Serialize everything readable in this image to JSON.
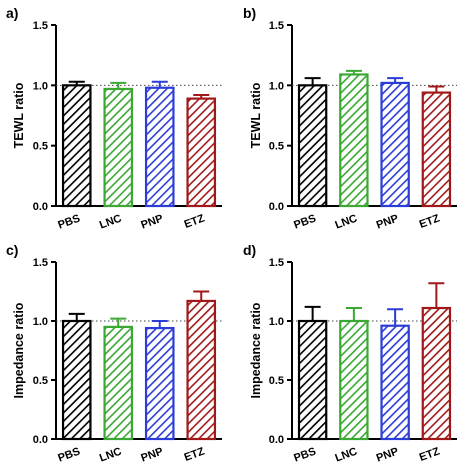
{
  "chart_data": [
    {
      "type": "bar",
      "panel_label": "a)",
      "categories": [
        "PBS",
        "LNC",
        "PNP",
        "ETZ"
      ],
      "values": [
        1.0,
        0.97,
        0.98,
        0.89
      ],
      "errors": [
        0.03,
        0.05,
        0.05,
        0.03
      ],
      "bar_colors": [
        "#000000",
        "#3aa832",
        "#2b3dd6",
        "#a01818"
      ],
      "ylabel": "TEWL ratio",
      "xlabel": "",
      "ylim": [
        0.0,
        1.5
      ],
      "yticks": [
        "0.0",
        "0.5",
        "1.0",
        "1.5"
      ],
      "reference_line": 1.0,
      "bar_fill": "diagonal-hatch",
      "grid": false,
      "legend": "none"
    },
    {
      "type": "bar",
      "panel_label": "b)",
      "categories": [
        "PBS",
        "LNC",
        "PNP",
        "ETZ"
      ],
      "values": [
        1.0,
        1.09,
        1.02,
        0.94
      ],
      "errors": [
        0.06,
        0.03,
        0.04,
        0.05
      ],
      "bar_colors": [
        "#000000",
        "#3aa832",
        "#2b3dd6",
        "#a01818"
      ],
      "ylabel": "TEWL ratio",
      "xlabel": "",
      "ylim": [
        0.0,
        1.5
      ],
      "yticks": [
        "0.0",
        "0.5",
        "1.0",
        "1.5"
      ],
      "reference_line": 1.0,
      "bar_fill": "diagonal-hatch",
      "grid": false,
      "legend": "none"
    },
    {
      "type": "bar",
      "panel_label": "c)",
      "categories": [
        "PBS",
        "LNC",
        "PNP",
        "ETZ"
      ],
      "values": [
        1.0,
        0.95,
        0.94,
        1.17
      ],
      "errors": [
        0.06,
        0.07,
        0.06,
        0.08
      ],
      "bar_colors": [
        "#000000",
        "#3aa832",
        "#2b3dd6",
        "#a01818"
      ],
      "ylabel": "Impedance ratio",
      "xlabel": "",
      "ylim": [
        0.0,
        1.5
      ],
      "yticks": [
        "0.0",
        "0.5",
        "1.0",
        "1.5"
      ],
      "reference_line": 1.0,
      "bar_fill": "diagonal-hatch",
      "grid": false,
      "legend": "none"
    },
    {
      "type": "bar",
      "panel_label": "d)",
      "categories": [
        "PBS",
        "LNC",
        "PNP",
        "ETZ"
      ],
      "values": [
        1.0,
        1.0,
        0.96,
        1.11
      ],
      "errors": [
        0.12,
        0.11,
        0.14,
        0.21
      ],
      "bar_colors": [
        "#000000",
        "#3aa832",
        "#2b3dd6",
        "#a01818"
      ],
      "ylabel": "Impedance ratio",
      "xlabel": "",
      "ylim": [
        0.0,
        1.5
      ],
      "yticks": [
        "0.0",
        "0.5",
        "1.0",
        "1.5"
      ],
      "reference_line": 1.0,
      "bar_fill": "diagonal-hatch",
      "grid": false,
      "legend": "none"
    }
  ]
}
